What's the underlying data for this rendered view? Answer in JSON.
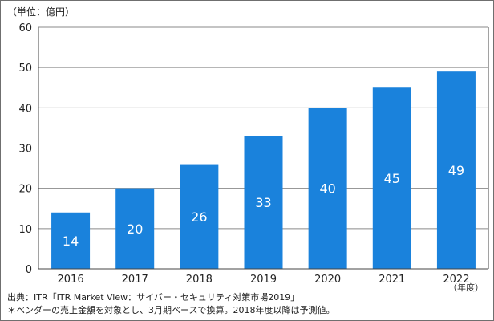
{
  "unit_label": "（単位：億円）",
  "x_unit_label": "（年度）",
  "source_note": "出典：ITR「ITR Market View：サイバー・セキュリティ対策市場2019」",
  "footnote": "＊ベンダーの売上金額を対象とし、3月期ベースで換算。2018年度以降は予測値。",
  "colors": {
    "bar": "#1a82dc",
    "axis": "#444444",
    "grid": "#8a8a8a",
    "label_inside": "#ffffff"
  },
  "chart_data": {
    "type": "bar",
    "categories": [
      "2016",
      "2017",
      "2018",
      "2019",
      "2020",
      "2021",
      "2022"
    ],
    "values": [
      14,
      20,
      26,
      33,
      40,
      45,
      49
    ],
    "value_labels": [
      "14",
      "20",
      "26",
      "33",
      "40",
      "45",
      "49"
    ],
    "title": "",
    "xlabel": "（年度）",
    "ylabel": "（単位：億円）",
    "ylim": [
      0,
      60
    ],
    "yticks": [
      "0",
      "10",
      "20",
      "30",
      "40",
      "50",
      "60"
    ],
    "grid": true,
    "legend": "none"
  }
}
